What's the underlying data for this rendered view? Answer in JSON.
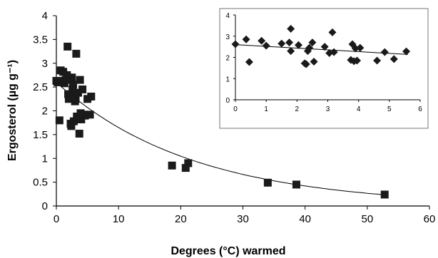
{
  "chart_data": [
    {
      "type": "scatter",
      "title": "",
      "xlabel": "Degrees (°C) warmed",
      "ylabel": "Ergosterol (µg g⁻¹)",
      "xlim": [
        0,
        60
      ],
      "ylim": [
        0,
        4
      ],
      "x_ticks": [
        "0",
        "10",
        "20",
        "30",
        "40",
        "50",
        "60"
      ],
      "y_ticks": [
        "0",
        "0.5",
        "1",
        "1.5",
        "2",
        "2.5",
        "3",
        "3.5",
        "4"
      ],
      "marker": "square",
      "marker_color": "#1a1a1a",
      "grid": false,
      "points": [
        {
          "x": 0.0,
          "y": 2.63
        },
        {
          "x": 0.2,
          "y": 2.6
        },
        {
          "x": 0.5,
          "y": 1.8
        },
        {
          "x": 0.7,
          "y": 2.85
        },
        {
          "x": 0.9,
          "y": 2.63
        },
        {
          "x": 1.1,
          "y": 2.82
        },
        {
          "x": 1.3,
          "y": 2.58
        },
        {
          "x": 1.5,
          "y": 2.65
        },
        {
          "x": 1.7,
          "y": 2.75
        },
        {
          "x": 1.8,
          "y": 3.35
        },
        {
          "x": 1.9,
          "y": 2.35
        },
        {
          "x": 2.0,
          "y": 2.25
        },
        {
          "x": 2.2,
          "y": 2.65
        },
        {
          "x": 2.3,
          "y": 1.73
        },
        {
          "x": 2.4,
          "y": 1.68
        },
        {
          "x": 2.5,
          "y": 2.7
        },
        {
          "x": 2.6,
          "y": 2.45
        },
        {
          "x": 2.7,
          "y": 2.55
        },
        {
          "x": 2.8,
          "y": 1.78
        },
        {
          "x": 2.9,
          "y": 2.35
        },
        {
          "x": 3.0,
          "y": 2.2
        },
        {
          "x": 3.1,
          "y": 2.25
        },
        {
          "x": 3.2,
          "y": 3.2
        },
        {
          "x": 3.3,
          "y": 1.88
        },
        {
          "x": 3.5,
          "y": 2.38
        },
        {
          "x": 3.7,
          "y": 1.52
        },
        {
          "x": 3.8,
          "y": 2.65
        },
        {
          "x": 3.9,
          "y": 1.95
        },
        {
          "x": 4.0,
          "y": 1.82
        },
        {
          "x": 4.2,
          "y": 2.45
        },
        {
          "x": 4.4,
          "y": 1.92
        },
        {
          "x": 4.6,
          "y": 1.9
        },
        {
          "x": 5.0,
          "y": 2.25
        },
        {
          "x": 5.4,
          "y": 1.92
        },
        {
          "x": 5.6,
          "y": 2.3
        },
        {
          "x": 18.6,
          "y": 0.85
        },
        {
          "x": 20.8,
          "y": 0.8
        },
        {
          "x": 21.2,
          "y": 0.9
        },
        {
          "x": 34.0,
          "y": 0.49
        },
        {
          "x": 38.6,
          "y": 0.45
        },
        {
          "x": 52.8,
          "y": 0.24
        }
      ],
      "trendline": {
        "type": "exponential",
        "a": 2.6,
        "b": -0.0455
      }
    },
    {
      "type": "scatter",
      "title": "",
      "xlim": [
        0,
        6
      ],
      "ylim": [
        0,
        4
      ],
      "x_ticks": [
        "0",
        "1",
        "2",
        "3",
        "4",
        "5",
        "6"
      ],
      "y_ticks": [
        "0",
        "1",
        "2",
        "3",
        "4"
      ],
      "marker": "diamond",
      "marker_color": "#1a1a1a",
      "grid": false,
      "points": [
        {
          "x": 0.0,
          "y": 2.62
        },
        {
          "x": 0.35,
          "y": 2.85
        },
        {
          "x": 0.45,
          "y": 1.78
        },
        {
          "x": 0.85,
          "y": 2.78
        },
        {
          "x": 1.0,
          "y": 2.55
        },
        {
          "x": 1.5,
          "y": 2.65
        },
        {
          "x": 1.75,
          "y": 2.7
        },
        {
          "x": 1.8,
          "y": 3.35
        },
        {
          "x": 1.8,
          "y": 2.3
        },
        {
          "x": 2.05,
          "y": 2.58
        },
        {
          "x": 2.25,
          "y": 1.72
        },
        {
          "x": 2.3,
          "y": 1.68
        },
        {
          "x": 2.35,
          "y": 2.3
        },
        {
          "x": 2.4,
          "y": 2.45
        },
        {
          "x": 2.5,
          "y": 2.7
        },
        {
          "x": 2.55,
          "y": 1.8
        },
        {
          "x": 2.9,
          "y": 2.5
        },
        {
          "x": 3.05,
          "y": 2.2
        },
        {
          "x": 3.15,
          "y": 3.18
        },
        {
          "x": 3.2,
          "y": 2.25
        },
        {
          "x": 3.75,
          "y": 1.88
        },
        {
          "x": 3.8,
          "y": 2.62
        },
        {
          "x": 3.85,
          "y": 1.82
        },
        {
          "x": 3.9,
          "y": 2.42
        },
        {
          "x": 3.95,
          "y": 1.85
        },
        {
          "x": 4.05,
          "y": 2.45
        },
        {
          "x": 4.6,
          "y": 1.85
        },
        {
          "x": 4.85,
          "y": 2.25
        },
        {
          "x": 5.15,
          "y": 1.92
        },
        {
          "x": 5.55,
          "y": 2.28
        }
      ],
      "trendline": {
        "type": "linear",
        "x": [
          0,
          5.6
        ],
        "y": [
          2.6,
          2.14
        ]
      }
    }
  ]
}
